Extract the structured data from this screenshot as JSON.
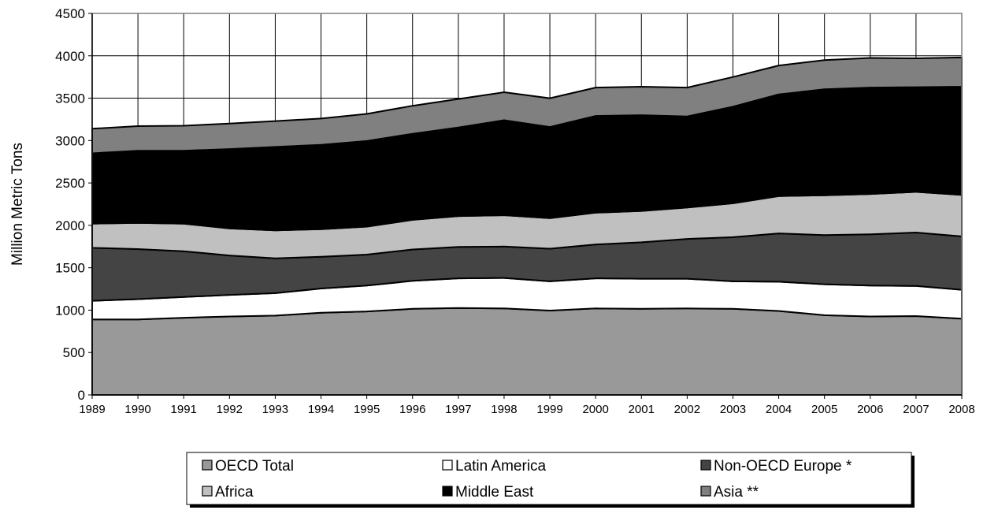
{
  "chart_data": {
    "type": "area",
    "stacked": true,
    "title": "",
    "xlabel": "",
    "ylabel": "Million Metric Tons",
    "ylim": [
      0,
      4500
    ],
    "yticks": [
      0,
      500,
      1000,
      1500,
      2000,
      2500,
      3000,
      3500,
      4000,
      4500
    ],
    "x": [
      "1989",
      "1990",
      "1991",
      "1992",
      "1993",
      "1994",
      "1995",
      "1996",
      "1997",
      "1998",
      "1999",
      "2000",
      "2001",
      "2002",
      "2003",
      "2004",
      "2005",
      "2006",
      "2007",
      "2008"
    ],
    "grid": "vertical and horizontal gridlines",
    "legend_position": "bottom",
    "series": [
      {
        "name": "OECD Total",
        "color": "#999999",
        "values": [
          890,
          890,
          910,
          925,
          935,
          970,
          985,
          1015,
          1025,
          1020,
          995,
          1020,
          1015,
          1020,
          1015,
          990,
          940,
          925,
          930,
          900
        ]
      },
      {
        "name": "Latin America",
        "color": "#ffffff",
        "values": [
          220,
          240,
          245,
          255,
          265,
          285,
          305,
          330,
          350,
          360,
          345,
          355,
          355,
          350,
          325,
          345,
          365,
          365,
          355,
          340
        ]
      },
      {
        "name": "Non-OECD Europe *",
        "color": "#444444",
        "values": [
          625,
          590,
          540,
          465,
          410,
          375,
          365,
          370,
          370,
          370,
          385,
          400,
          430,
          470,
          520,
          570,
          580,
          605,
          630,
          630
        ]
      },
      {
        "name": "Africa",
        "color": "#c0c0c0",
        "values": [
          285,
          310,
          325,
          320,
          330,
          325,
          330,
          350,
          365,
          370,
          360,
          375,
          370,
          370,
          400,
          440,
          470,
          475,
          480,
          490
        ]
      },
      {
        "name": "Middle East",
        "color": "#000000",
        "values": [
          830,
          850,
          860,
          935,
          985,
          995,
          1010,
          1015,
          1045,
          1120,
          1075,
          1140,
          1130,
          1075,
          1140,
          1200,
          1250,
          1255,
          1235,
          1275
        ]
      },
      {
        "name": "Asia **",
        "color": "#808080",
        "values": [
          290,
          290,
          295,
          300,
          305,
          310,
          320,
          330,
          335,
          330,
          340,
          335,
          335,
          340,
          350,
          340,
          345,
          350,
          340,
          345
        ]
      }
    ]
  }
}
